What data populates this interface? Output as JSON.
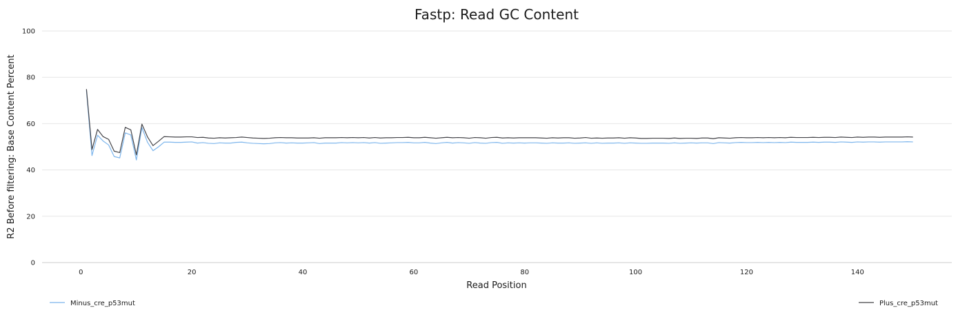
{
  "chart_data": {
    "type": "line",
    "title": "Fastp: Read GC Content",
    "xlabel": "Read Position",
    "ylabel": "R2 Before filtering: Base Content Percent",
    "xlim": [
      -7,
      157
    ],
    "ylim": [
      0,
      100
    ],
    "xticks": [
      0,
      20,
      40,
      60,
      80,
      100,
      120,
      140
    ],
    "yticks": [
      0,
      20,
      40,
      60,
      80,
      100
    ],
    "grid": true,
    "legend": "bottom",
    "x": [
      1,
      2,
      3,
      4,
      5,
      6,
      7,
      8,
      9,
      10,
      11,
      12,
      13,
      14,
      15,
      16,
      17,
      18,
      19,
      20,
      21,
      22,
      23,
      24,
      25,
      26,
      27,
      28,
      29,
      30,
      31,
      32,
      33,
      34,
      35,
      36,
      37,
      38,
      39,
      40,
      41,
      42,
      43,
      44,
      45,
      46,
      47,
      48,
      49,
      50,
      51,
      52,
      53,
      54,
      55,
      56,
      57,
      58,
      59,
      60,
      61,
      62,
      63,
      64,
      65,
      66,
      67,
      68,
      69,
      70,
      71,
      72,
      73,
      74,
      75,
      76,
      77,
      78,
      79,
      80,
      81,
      82,
      83,
      84,
      85,
      86,
      87,
      88,
      89,
      90,
      91,
      92,
      93,
      94,
      95,
      96,
      97,
      98,
      99,
      100,
      101,
      102,
      103,
      104,
      105,
      106,
      107,
      108,
      109,
      110,
      111,
      112,
      113,
      114,
      115,
      116,
      117,
      118,
      119,
      120,
      121,
      122,
      123,
      124,
      125,
      126,
      127,
      128,
      129,
      130,
      131,
      132,
      133,
      134,
      135,
      136,
      137,
      138,
      139,
      140,
      141,
      142,
      143,
      144,
      145,
      146,
      147,
      148,
      149,
      150
    ],
    "series": [
      {
        "name": "Minus_cre_p53mut",
        "color": "#7cb5ec",
        "values": [
          74.3,
          46.2,
          55.0,
          52.5,
          50.8,
          45.8,
          45.2,
          56.0,
          55.1,
          44.3,
          58.3,
          52.0,
          48.3,
          50.0,
          52.0,
          52.0,
          51.9,
          51.9,
          52.0,
          52.1,
          51.6,
          51.8,
          51.5,
          51.4,
          51.7,
          51.6,
          51.6,
          51.9,
          52.0,
          51.7,
          51.5,
          51.4,
          51.3,
          51.4,
          51.7,
          51.8,
          51.6,
          51.7,
          51.6,
          51.6,
          51.7,
          51.8,
          51.4,
          51.6,
          51.6,
          51.6,
          51.8,
          51.7,
          51.8,
          51.7,
          51.8,
          51.6,
          51.8,
          51.5,
          51.6,
          51.7,
          51.8,
          51.8,
          51.9,
          51.7,
          51.7,
          51.9,
          51.6,
          51.4,
          51.7,
          51.9,
          51.6,
          51.8,
          51.7,
          51.5,
          51.8,
          51.6,
          51.5,
          51.8,
          51.9,
          51.5,
          51.7,
          51.6,
          51.7,
          51.6,
          51.7,
          51.7,
          51.6,
          51.5,
          51.7,
          51.6,
          51.6,
          51.7,
          51.5,
          51.6,
          51.7,
          51.5,
          51.7,
          51.5,
          51.6,
          51.6,
          51.7,
          51.5,
          51.7,
          51.6,
          51.5,
          51.5,
          51.6,
          51.6,
          51.6,
          51.5,
          51.7,
          51.5,
          51.6,
          51.7,
          51.6,
          51.7,
          51.7,
          51.4,
          51.8,
          51.7,
          51.6,
          51.8,
          51.9,
          51.8,
          51.8,
          51.9,
          51.8,
          51.9,
          51.8,
          51.9,
          51.8,
          52.0,
          51.9,
          51.9,
          51.9,
          52.0,
          51.9,
          52.0,
          52.0,
          51.9,
          52.1,
          52.0,
          51.9,
          52.1,
          52.0,
          52.1,
          52.1,
          52.0,
          52.1,
          52.1,
          52.1,
          52.1,
          52.2,
          52.1
        ]
      },
      {
        "name": "Plus_cre_p53mut",
        "color": "#434348",
        "values": [
          74.9,
          48.8,
          57.5,
          54.4,
          53.2,
          48.1,
          47.5,
          58.4,
          57.3,
          46.5,
          59.8,
          54.3,
          50.5,
          52.4,
          54.4,
          54.3,
          54.2,
          54.2,
          54.3,
          54.3,
          54.0,
          54.1,
          53.8,
          53.7,
          53.9,
          53.8,
          53.9,
          54.0,
          54.2,
          54.0,
          53.8,
          53.7,
          53.6,
          53.7,
          53.9,
          54.0,
          53.9,
          53.9,
          53.8,
          53.8,
          53.8,
          53.9,
          53.7,
          53.9,
          53.9,
          53.9,
          54.0,
          53.9,
          54.0,
          53.9,
          54.0,
          53.8,
          54.0,
          53.8,
          53.9,
          53.9,
          54.0,
          54.0,
          54.1,
          53.9,
          53.9,
          54.1,
          53.9,
          53.7,
          53.9,
          54.1,
          53.9,
          54.0,
          53.9,
          53.7,
          54.0,
          53.9,
          53.7,
          54.0,
          54.1,
          53.8,
          53.9,
          53.8,
          53.9,
          53.9,
          53.9,
          53.9,
          53.8,
          53.7,
          53.9,
          53.8,
          53.9,
          53.9,
          53.7,
          53.8,
          54.0,
          53.7,
          53.8,
          53.7,
          53.8,
          53.8,
          53.9,
          53.7,
          53.9,
          53.8,
          53.6,
          53.6,
          53.7,
          53.7,
          53.7,
          53.6,
          53.8,
          53.6,
          53.7,
          53.7,
          53.6,
          53.8,
          53.8,
          53.5,
          53.9,
          53.8,
          53.7,
          53.9,
          54.0,
          53.9,
          53.9,
          54.0,
          53.9,
          54.0,
          53.9,
          54.0,
          53.9,
          54.1,
          54.0,
          54.0,
          54.0,
          54.1,
          54.0,
          54.1,
          54.1,
          54.0,
          54.2,
          54.1,
          54.0,
          54.2,
          54.1,
          54.2,
          54.2,
          54.1,
          54.2,
          54.2,
          54.2,
          54.2,
          54.3,
          54.2
        ]
      }
    ]
  }
}
